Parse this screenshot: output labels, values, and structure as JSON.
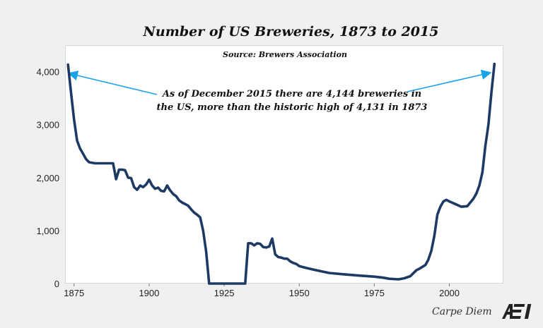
{
  "chart_data": {
    "type": "line",
    "title": "Number of US Breweries, 1873 to 2015",
    "subtitle": "Source: Brewers Association",
    "annotation_lines": [
      "As of December 2015 there are 4,144 breweries in",
      "the US, more than the historic high of 4,131 in 1873"
    ],
    "xlim": [
      1872,
      2018
    ],
    "ylim": [
      0,
      4500
    ],
    "x_ticks": [
      1875,
      1900,
      1925,
      1950,
      1975,
      2000
    ],
    "x_tick_labels": [
      "1875",
      "1900",
      "1925",
      "1950",
      "1975",
      "2000"
    ],
    "y_ticks": [
      0,
      1000,
      2000,
      3000,
      4000
    ],
    "y_tick_labels": [
      "0",
      "1,000",
      "2,000",
      "3,000",
      "4,000"
    ],
    "grid": false,
    "series": [
      {
        "color": "#1c3a63",
        "x": [
          1873,
          1874,
          1875,
          1876,
          1877,
          1878,
          1879,
          1880,
          1882,
          1884,
          1886,
          1887,
          1888,
          1889,
          1890,
          1891,
          1892,
          1893,
          1894,
          1895,
          1896,
          1897,
          1898,
          1899,
          1900,
          1901,
          1902,
          1903,
          1904,
          1905,
          1906,
          1907,
          1908,
          1909,
          1910,
          1911,
          1912,
          1913,
          1914,
          1915,
          1916,
          1917,
          1918,
          1919,
          1920,
          1925,
          1932,
          1933,
          1934,
          1935,
          1936,
          1937,
          1938,
          1939,
          1940,
          1941,
          1942,
          1943,
          1944,
          1945,
          1946,
          1947,
          1948,
          1949,
          1950,
          1952,
          1955,
          1960,
          1965,
          1970,
          1975,
          1978,
          1980,
          1983,
          1985,
          1987,
          1989,
          1990,
          1992,
          1993,
          1994,
          1995,
          1996,
          1997,
          1998,
          1999,
          2000,
          2002,
          2004,
          2006,
          2008,
          2009,
          2010,
          2011,
          2012,
          2013,
          2014,
          2015
        ],
        "y": [
          4131,
          3600,
          3100,
          2700,
          2550,
          2450,
          2350,
          2290,
          2270,
          2270,
          2270,
          2270,
          2270,
          1970,
          2150,
          2150,
          2140,
          2000,
          1990,
          1820,
          1770,
          1850,
          1820,
          1870,
          1960,
          1850,
          1790,
          1810,
          1750,
          1740,
          1850,
          1760,
          1690,
          1650,
          1570,
          1530,
          1500,
          1470,
          1400,
          1340,
          1300,
          1250,
          1000,
          600,
          0,
          0,
          0,
          760,
          760,
          720,
          760,
          750,
          690,
          680,
          700,
          850,
          550,
          500,
          490,
          470,
          470,
          420,
          390,
          370,
          330,
          300,
          260,
          200,
          175,
          150,
          130,
          110,
          90,
          80,
          100,
          140,
          250,
          280,
          350,
          450,
          620,
          900,
          1300,
          1450,
          1550,
          1580,
          1550,
          1500,
          1450,
          1460,
          1600,
          1700,
          1850,
          2100,
          2600,
          3000,
          3600,
          4144
        ]
      }
    ]
  },
  "footer": {
    "text": "Carpe Diem",
    "logo_text": "AEI"
  }
}
